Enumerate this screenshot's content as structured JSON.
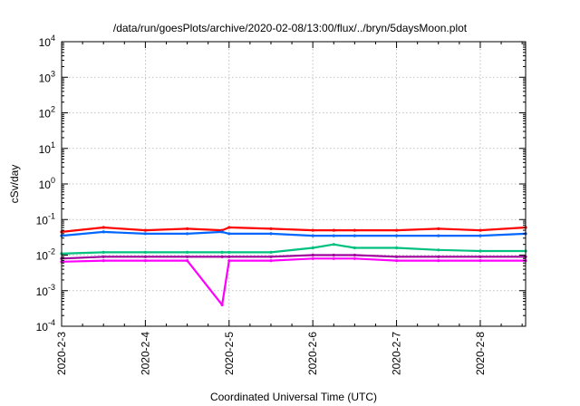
{
  "chart_data": {
    "type": "line",
    "title": "/data/run/goesPlots/archive/2020-02-08/13:00/flux/../bryn/5daysMoon.plot",
    "xlabel": "Coordinated Universal Time (UTC)",
    "ylabel": "cSv/day",
    "yscale": "log",
    "ylim": [
      0.0001,
      10000
    ],
    "xlim": [
      "2020-02-03 00:00",
      "2020-02-08 13:00"
    ],
    "grid": true,
    "legend": "none",
    "x_ticks": [
      "2020-2-3",
      "2020-2-4",
      "2020-2-5",
      "2020-2-6",
      "2020-2-7",
      "2020-2-8"
    ],
    "y_ticks": [
      {
        "base": "10",
        "exp": "-4"
      },
      {
        "base": "10",
        "exp": "-3"
      },
      {
        "base": "10",
        "exp": "-2"
      },
      {
        "base": "10",
        "exp": "-1"
      },
      {
        "base": "10",
        "exp": "0"
      },
      {
        "base": "10",
        "exp": "1"
      },
      {
        "base": "10",
        "exp": "2"
      },
      {
        "base": "10",
        "exp": "3"
      },
      {
        "base": "10",
        "exp": "4"
      }
    ],
    "x": [
      "2020-02-03 00:00",
      "2020-02-03 12:00",
      "2020-02-04 00:00",
      "2020-02-04 12:00",
      "2020-02-04 22:00",
      "2020-02-05 00:00",
      "2020-02-05 12:00",
      "2020-02-06 00:00",
      "2020-02-06 06:00",
      "2020-02-06 12:00",
      "2020-02-07 00:00",
      "2020-02-07 12:00",
      "2020-02-08 00:00",
      "2020-02-08 13:00"
    ],
    "series": [
      {
        "color": "#ff0000",
        "values": [
          0.045,
          0.06,
          0.05,
          0.055,
          0.05,
          0.06,
          0.055,
          0.05,
          0.05,
          0.05,
          0.05,
          0.055,
          0.05,
          0.06
        ]
      },
      {
        "color": "#0066ff",
        "values": [
          0.035,
          0.045,
          0.04,
          0.04,
          0.045,
          0.04,
          0.04,
          0.035,
          0.035,
          0.035,
          0.035,
          0.035,
          0.035,
          0.04
        ]
      },
      {
        "color": "#00c080",
        "values": [
          0.011,
          0.012,
          0.012,
          0.012,
          0.012,
          0.012,
          0.012,
          0.016,
          0.02,
          0.016,
          0.016,
          0.014,
          0.013,
          0.013
        ]
      },
      {
        "color": "#a0009e",
        "values": [
          0.008,
          0.009,
          0.009,
          0.009,
          0.009,
          0.009,
          0.009,
          0.01,
          0.01,
          0.01,
          0.009,
          0.009,
          0.009,
          0.009
        ]
      },
      {
        "color": "#ff00ff",
        "values": [
          0.0065,
          0.007,
          0.007,
          0.007,
          0.0004,
          0.007,
          0.007,
          0.008,
          0.008,
          0.008,
          0.007,
          0.007,
          0.007,
          0.007
        ]
      }
    ]
  }
}
